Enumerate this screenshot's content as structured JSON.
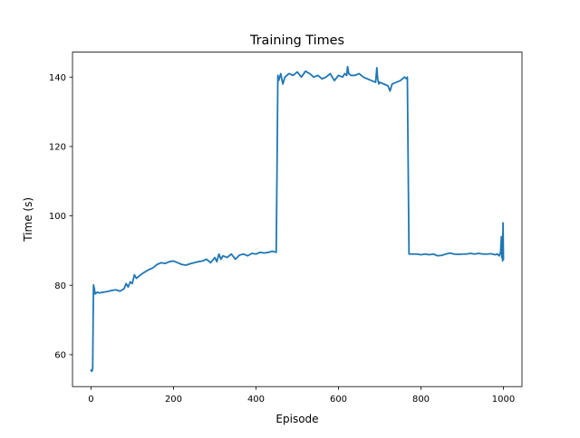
{
  "chart_data": {
    "type": "line",
    "title": "Training Times",
    "xlabel": "Episode",
    "ylabel": "Time (s)",
    "xlim": [
      -45,
      1045
    ],
    "ylim": [
      50.8,
      147.2
    ],
    "xticks": [
      0,
      200,
      400,
      600,
      800,
      1000
    ],
    "yticks": [
      60,
      80,
      100,
      120,
      140
    ],
    "xtick_labels": [
      "0",
      "200",
      "400",
      "600",
      "800",
      "1000"
    ],
    "ytick_labels": [
      "60",
      "80",
      "100",
      "120",
      "140"
    ],
    "grid": false,
    "line_color": "#1f77b4",
    "series": [
      {
        "x": [
          0,
          2,
          4,
          5,
          6,
          8,
          10,
          15,
          20,
          30,
          40,
          50,
          60,
          70,
          80,
          85,
          90,
          95,
          100,
          105,
          110,
          115,
          120,
          130,
          140,
          150,
          160,
          170,
          180,
          190,
          200,
          210,
          220,
          230,
          240,
          250,
          260,
          270,
          280,
          290,
          300,
          305,
          310,
          315,
          320,
          330,
          340,
          350,
          360,
          370,
          380,
          390,
          400,
          410,
          420,
          430,
          440,
          449,
          451,
          453,
          455,
          460,
          465,
          470,
          480,
          490,
          500,
          510,
          520,
          530,
          540,
          550,
          560,
          570,
          580,
          590,
          600,
          610,
          615,
          620,
          622,
          625,
          630,
          640,
          650,
          660,
          670,
          680,
          690,
          693,
          695,
          698,
          700,
          710,
          720,
          725,
          730,
          740,
          750,
          760,
          765,
          767,
          769,
          771,
          780,
          790,
          800,
          810,
          820,
          830,
          840,
          850,
          860,
          870,
          880,
          890,
          900,
          910,
          920,
          930,
          940,
          950,
          960,
          970,
          980,
          985,
          990,
          993,
          995,
          996,
          997,
          998,
          999,
          1000
        ],
        "y": [
          55.5,
          55.2,
          56.0,
          70.0,
          80.1,
          79.0,
          77.5,
          78.0,
          77.8,
          78.0,
          78.2,
          78.5,
          78.7,
          78.3,
          79.0,
          80.5,
          79.5,
          81.0,
          80.5,
          83.0,
          82.0,
          82.5,
          83.0,
          83.8,
          84.5,
          85.0,
          86.0,
          86.5,
          86.3,
          86.8,
          87.0,
          86.5,
          86.0,
          85.8,
          86.2,
          86.5,
          86.8,
          87.0,
          87.5,
          86.5,
          88.0,
          86.8,
          89.0,
          87.5,
          88.5,
          88.0,
          89.0,
          87.5,
          88.7,
          89.0,
          88.5,
          89.2,
          89.0,
          89.5,
          89.3,
          89.5,
          89.8,
          89.5,
          114.0,
          140.5,
          139.0,
          141.0,
          138.0,
          140.0,
          141.0,
          140.5,
          141.5,
          140.0,
          141.7,
          141.0,
          140.0,
          140.5,
          139.5,
          140.0,
          141.0,
          139.0,
          140.5,
          140.0,
          141.0,
          140.5,
          143.0,
          141.0,
          140.5,
          140.5,
          141.0,
          140.0,
          139.5,
          139.0,
          138.5,
          142.7,
          139.5,
          138.0,
          138.5,
          138.0,
          137.5,
          136.0,
          138.0,
          138.5,
          139.0,
          140.0,
          139.5,
          140.0,
          114.0,
          89.0,
          89.0,
          89.0,
          88.8,
          89.0,
          88.8,
          89.0,
          88.5,
          88.6,
          89.0,
          89.3,
          89.0,
          88.9,
          89.0,
          89.0,
          89.2,
          89.0,
          89.2,
          89.0,
          89.0,
          89.1,
          88.8,
          89.0,
          88.5,
          89.5,
          94.0,
          88.0,
          89.0,
          87.0,
          98.0,
          87.5
        ]
      }
    ]
  }
}
